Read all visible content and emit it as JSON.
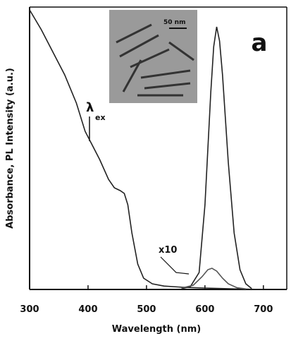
{
  "chart_data": {
    "type": "line",
    "x_label": "Wavelength (nm)",
    "y_label": "Absorbance, PL Intensity (a.u.)",
    "xlim": [
      300,
      740
    ],
    "ylim": [
      0,
      1
    ],
    "xticks": [
      300,
      400,
      500,
      600,
      700
    ],
    "series": [
      {
        "color": "#222222",
        "x": [
          300,
          320,
          340,
          360,
          380,
          395,
          405,
          420,
          435,
          445,
          455,
          462,
          468,
          475,
          485,
          495,
          510,
          530,
          560,
          600,
          650,
          700
        ],
        "values": [
          0.99,
          0.92,
          0.84,
          0.76,
          0.66,
          0.56,
          0.52,
          0.46,
          0.39,
          0.36,
          0.35,
          0.34,
          0.3,
          0.2,
          0.09,
          0.04,
          0.02,
          0.012,
          0.008,
          0.005,
          0.002,
          0
        ]
      },
      {
        "color": "#222222",
        "x": [
          560,
          575,
          590,
          600,
          610,
          615,
          620,
          625,
          630,
          640,
          650,
          660,
          670,
          680
        ],
        "values": [
          0.003,
          0.01,
          0.06,
          0.3,
          0.7,
          0.86,
          0.93,
          0.88,
          0.76,
          0.45,
          0.2,
          0.07,
          0.02,
          0.003
        ]
      },
      {
        "color": "#555555",
        "x": [
          560,
          580,
          595,
          605,
          612,
          620,
          630,
          640,
          655,
          670
        ],
        "values": [
          0.005,
          0.015,
          0.045,
          0.07,
          0.075,
          0.065,
          0.04,
          0.02,
          0.006,
          0.002
        ]
      }
    ],
    "annotations": [
      {
        "text": "a"
      },
      {
        "text": "λ"
      },
      {
        "text": "ex"
      },
      {
        "text": "x10"
      },
      {
        "text": "50 nm"
      }
    ]
  }
}
